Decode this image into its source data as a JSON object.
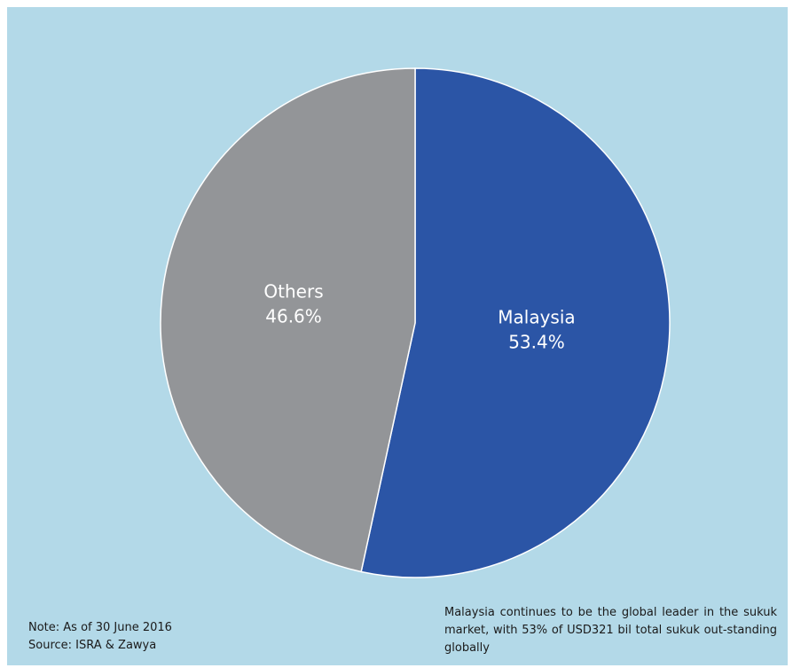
{
  "chart_data": {
    "type": "pie",
    "slices": [
      {
        "label": "Malaysia",
        "value": 53.4,
        "value_label": "53.4%",
        "color": "#2b55a6"
      },
      {
        "label": "Others",
        "value": 46.6,
        "value_label": "46.6%",
        "color": "#939598"
      }
    ],
    "start": "top (12 o'clock), clockwise",
    "background": "#b3d9e8",
    "slice_border": "#ffffff"
  },
  "notes": {
    "note": "Note: As of 30 June 2016",
    "source": "Source: ISRA & Zawya"
  },
  "caption": "Malaysia continues to be the global leader in the sukuk market, with 53% of USD321 bil total sukuk out-standing globally"
}
